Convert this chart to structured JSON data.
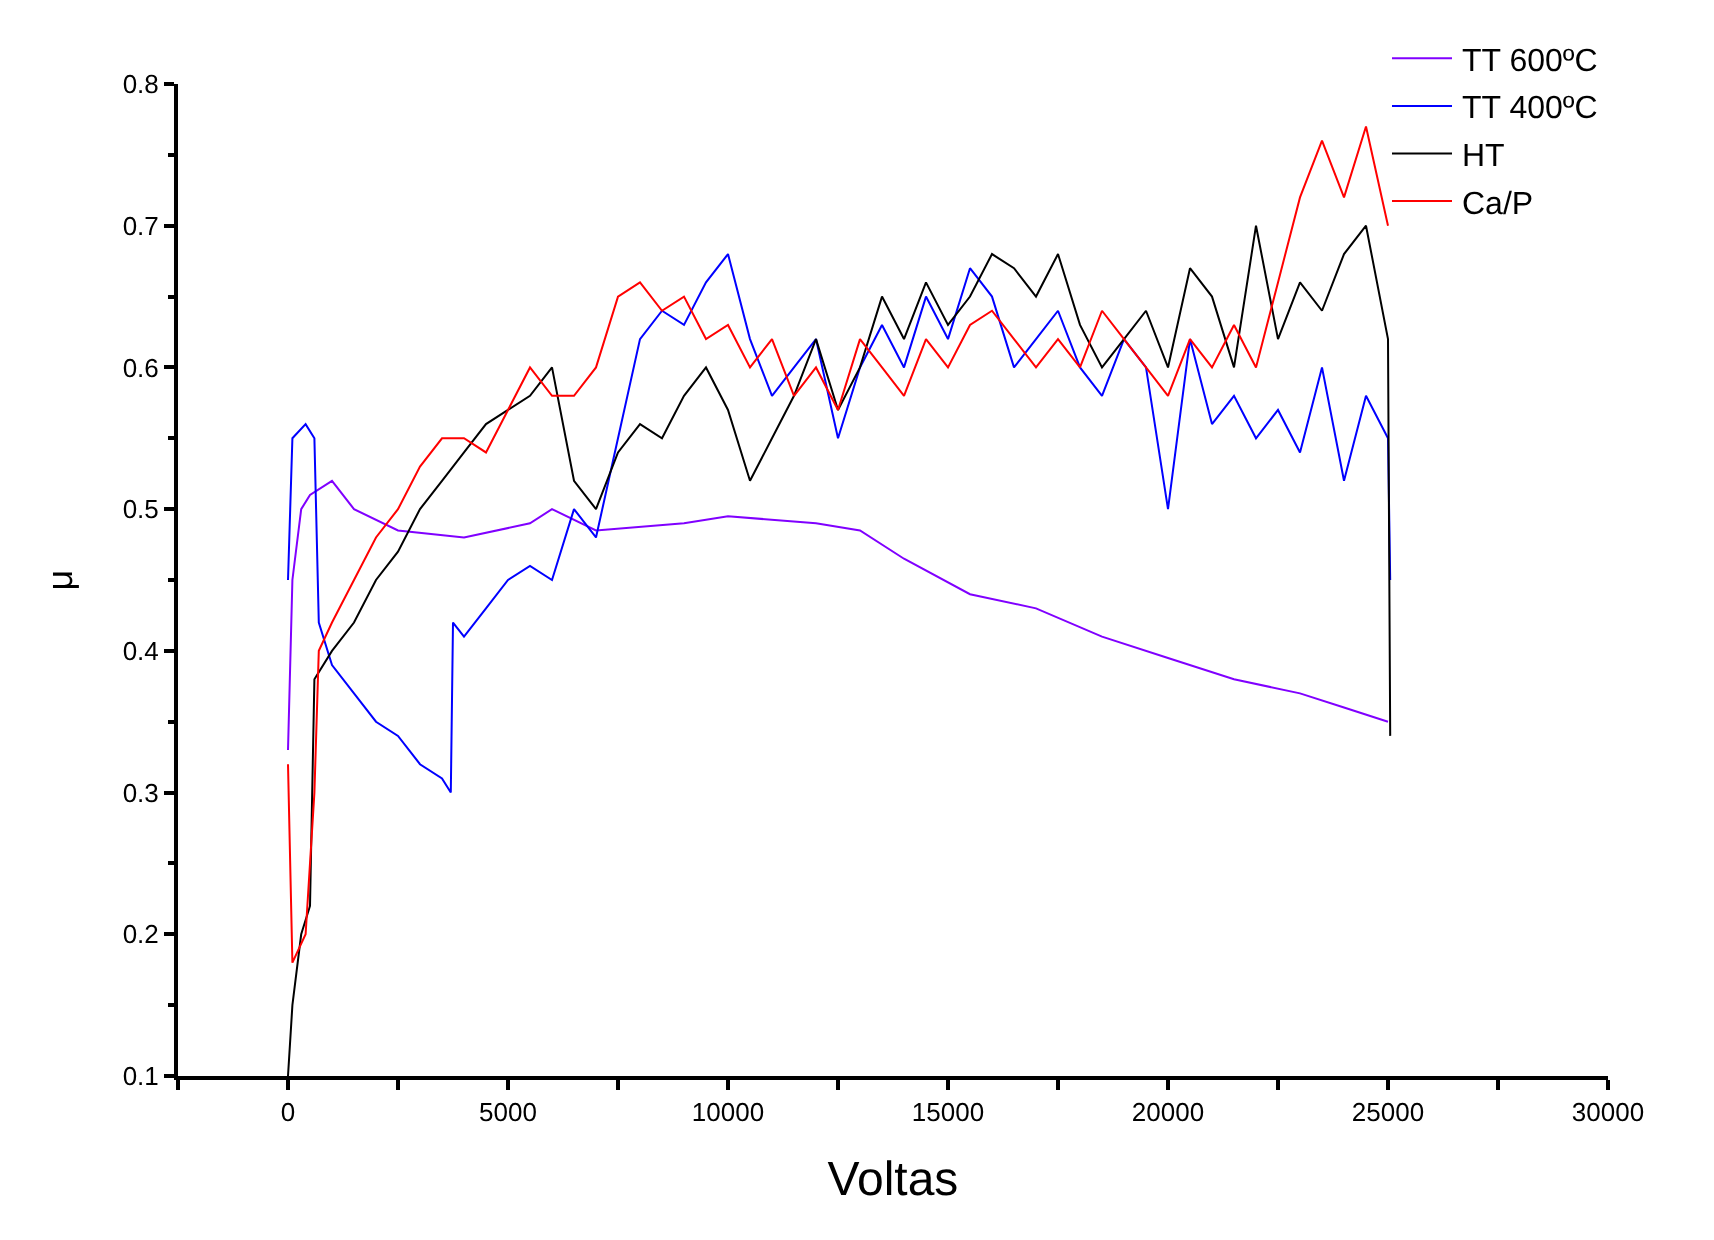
{
  "chart_data": {
    "type": "line",
    "xlabel": "Voltas",
    "ylabel": "μ",
    "xlim": [
      -2500,
      30000
    ],
    "xticks": [
      {
        "value": -2500,
        "label": null
      },
      0,
      {
        "value": 2500,
        "label": null
      },
      5000,
      {
        "value": 7500,
        "label": null
      },
      10000,
      {
        "value": 12500,
        "label": null
      },
      15000,
      {
        "value": 17500,
        "label": null
      },
      20000,
      {
        "value": 22500,
        "label": null
      },
      25000,
      {
        "value": 27500,
        "label": null
      },
      30000
    ],
    "ylim": [
      0.1,
      0.8
    ],
    "yticks": [
      0.1,
      0.2,
      0.3,
      0.4,
      0.5,
      0.6,
      0.7,
      0.8
    ],
    "legend": "top right",
    "marker": "none",
    "line_style": "solid",
    "series": [
      {
        "name": "TT 600ºC",
        "color": "#8000ff",
        "x": [
          0,
          100,
          300,
          500,
          1000,
          1500,
          2500,
          4000,
          5500,
          6000,
          7000,
          9000,
          10000,
          12000,
          13000,
          14000,
          15500,
          17000,
          18500,
          20000,
          21500,
          23000,
          24000,
          25000
        ],
        "values": [
          0.33,
          0.45,
          0.5,
          0.51,
          0.52,
          0.5,
          0.485,
          0.48,
          0.49,
          0.5,
          0.485,
          0.49,
          0.495,
          0.49,
          0.485,
          0.465,
          0.44,
          0.43,
          0.41,
          0.395,
          0.38,
          0.37,
          0.36,
          0.35
        ]
      },
      {
        "name": "TT 400ºC",
        "color": "#0000ff",
        "x": [
          0,
          100,
          400,
          600,
          700,
          1000,
          1500,
          2000,
          2500,
          3000,
          3500,
          3700,
          3750,
          4000,
          4500,
          5000,
          5500,
          6000,
          6500,
          7000,
          7500,
          8000,
          8500,
          9000,
          9500,
          10000,
          10500,
          11000,
          11500,
          12000,
          12500,
          13000,
          13500,
          14000,
          14500,
          15000,
          15500,
          16000,
          16500,
          17000,
          17500,
          18000,
          18500,
          19000,
          19500,
          20000,
          20500,
          21000,
          21500,
          22000,
          22500,
          23000,
          23500,
          24000,
          24500,
          25000,
          25050
        ],
        "values": [
          0.45,
          0.55,
          0.56,
          0.55,
          0.42,
          0.39,
          0.37,
          0.35,
          0.34,
          0.32,
          0.31,
          0.3,
          0.42,
          0.41,
          0.43,
          0.45,
          0.46,
          0.45,
          0.5,
          0.48,
          0.55,
          0.62,
          0.64,
          0.63,
          0.66,
          0.68,
          0.62,
          0.58,
          0.6,
          0.62,
          0.55,
          0.6,
          0.63,
          0.6,
          0.65,
          0.62,
          0.67,
          0.65,
          0.6,
          0.62,
          0.64,
          0.6,
          0.58,
          0.62,
          0.6,
          0.5,
          0.62,
          0.56,
          0.58,
          0.55,
          0.57,
          0.54,
          0.6,
          0.52,
          0.58,
          0.55,
          0.45
        ]
      },
      {
        "name": "HT",
        "color": "#000000",
        "x": [
          0,
          100,
          300,
          500,
          600,
          1000,
          1500,
          2000,
          2500,
          3000,
          3500,
          4000,
          4500,
          5000,
          5500,
          6000,
          6500,
          7000,
          7500,
          8000,
          8500,
          9000,
          9500,
          10000,
          10500,
          11000,
          11500,
          12000,
          12500,
          13000,
          13500,
          14000,
          14500,
          15000,
          15500,
          16000,
          16500,
          17000,
          17500,
          18000,
          18500,
          19000,
          19500,
          20000,
          20500,
          21000,
          21500,
          22000,
          22500,
          23000,
          23500,
          24000,
          24500,
          25000,
          25050
        ],
        "values": [
          0.1,
          0.15,
          0.2,
          0.22,
          0.38,
          0.4,
          0.42,
          0.45,
          0.47,
          0.5,
          0.52,
          0.54,
          0.56,
          0.57,
          0.58,
          0.6,
          0.52,
          0.5,
          0.54,
          0.56,
          0.55,
          0.58,
          0.6,
          0.57,
          0.52,
          0.55,
          0.58,
          0.62,
          0.57,
          0.6,
          0.65,
          0.62,
          0.66,
          0.63,
          0.65,
          0.68,
          0.67,
          0.65,
          0.68,
          0.63,
          0.6,
          0.62,
          0.64,
          0.6,
          0.67,
          0.65,
          0.6,
          0.7,
          0.62,
          0.66,
          0.64,
          0.68,
          0.7,
          0.62,
          0.34
        ]
      },
      {
        "name": "Ca/P",
        "color": "#ff0000",
        "x": [
          0,
          100,
          400,
          600,
          700,
          1000,
          1500,
          2000,
          2500,
          3000,
          3500,
          4000,
          4500,
          5000,
          5500,
          6000,
          6500,
          7000,
          7500,
          8000,
          8500,
          9000,
          9500,
          10000,
          10500,
          11000,
          11500,
          12000,
          12500,
          13000,
          13500,
          14000,
          14500,
          15000,
          15500,
          16000,
          16500,
          17000,
          17500,
          18000,
          18500,
          19000,
          19500,
          20000,
          20500,
          21000,
          21500,
          22000,
          22500,
          23000,
          23500,
          24000,
          24500,
          25000
        ],
        "values": [
          0.32,
          0.18,
          0.2,
          0.3,
          0.4,
          0.42,
          0.45,
          0.48,
          0.5,
          0.53,
          0.55,
          0.55,
          0.54,
          0.57,
          0.6,
          0.58,
          0.58,
          0.6,
          0.65,
          0.66,
          0.64,
          0.65,
          0.62,
          0.63,
          0.6,
          0.62,
          0.58,
          0.6,
          0.57,
          0.62,
          0.6,
          0.58,
          0.62,
          0.6,
          0.63,
          0.64,
          0.62,
          0.6,
          0.62,
          0.6,
          0.64,
          0.62,
          0.6,
          0.58,
          0.62,
          0.6,
          0.63,
          0.6,
          0.66,
          0.72,
          0.76,
          0.72,
          0.77,
          0.7
        ]
      }
    ]
  }
}
